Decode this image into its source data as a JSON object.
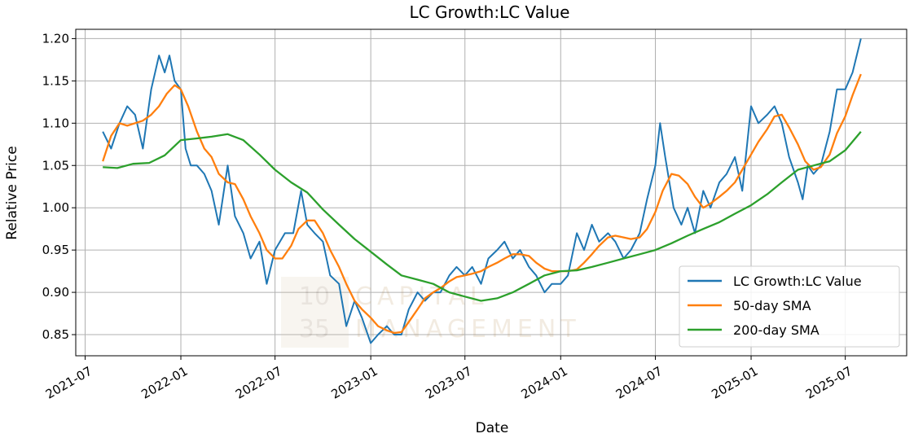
{
  "chart_data": {
    "type": "line",
    "title": "LC Growth:LC Value",
    "xlabel": "Date",
    "ylabel": "Relative Price",
    "xlim": [
      "2021-06-13",
      "2025-10-27"
    ],
    "ylim": [
      0.825,
      1.211
    ],
    "x_ticks": [
      "2021-07",
      "2022-01",
      "2022-07",
      "2023-01",
      "2023-07",
      "2024-01",
      "2024-07",
      "2025-01",
      "2025-07"
    ],
    "y_ticks": [
      0.85,
      0.9,
      0.95,
      1.0,
      1.05,
      1.1,
      1.15,
      1.2
    ],
    "y_tick_labels": [
      "0.85",
      "0.90",
      "0.95",
      "1.00",
      "1.05",
      "1.10",
      "1.15",
      "1.20"
    ],
    "grid": true,
    "legend_position": "lower-right",
    "series": [
      {
        "name": "LC Growth:LC Value",
        "color": "#1f77b4",
        "dates": [
          "2021-08-04",
          "2021-08-20",
          "2021-09-05",
          "2021-09-20",
          "2021-10-05",
          "2021-10-20",
          "2021-11-05",
          "2021-11-20",
          "2021-12-01",
          "2021-12-10",
          "2021-12-20",
          "2022-01-01",
          "2022-01-10",
          "2022-01-20",
          "2022-02-01",
          "2022-02-15",
          "2022-03-01",
          "2022-03-15",
          "2022-04-01",
          "2022-04-15",
          "2022-05-01",
          "2022-05-15",
          "2022-06-01",
          "2022-06-15",
          "2022-07-01",
          "2022-07-20",
          "2022-08-05",
          "2022-08-20",
          "2022-09-01",
          "2022-09-15",
          "2022-10-01",
          "2022-10-15",
          "2022-11-01",
          "2022-11-15",
          "2022-12-01",
          "2022-12-15",
          "2023-01-01",
          "2023-01-15",
          "2023-02-01",
          "2023-02-15",
          "2023-03-01",
          "2023-03-15",
          "2023-04-01",
          "2023-04-15",
          "2023-05-01",
          "2023-05-15",
          "2023-06-01",
          "2023-06-15",
          "2023-07-01",
          "2023-07-15",
          "2023-08-01",
          "2023-08-15",
          "2023-09-01",
          "2023-09-15",
          "2023-10-01",
          "2023-10-15",
          "2023-11-01",
          "2023-11-15",
          "2023-12-01",
          "2023-12-15",
          "2024-01-01",
          "2024-01-15",
          "2024-02-01",
          "2024-02-15",
          "2024-03-01",
          "2024-03-15",
          "2024-04-01",
          "2024-04-15",
          "2024-05-01",
          "2024-05-15",
          "2024-06-01",
          "2024-06-15",
          "2024-07-01",
          "2024-07-10",
          "2024-07-20",
          "2024-08-05",
          "2024-08-20",
          "2024-09-01",
          "2024-09-15",
          "2024-10-01",
          "2024-10-15",
          "2024-11-01",
          "2024-11-15",
          "2024-12-01",
          "2024-12-15",
          "2025-01-01",
          "2025-01-15",
          "2025-02-01",
          "2025-02-15",
          "2025-03-01",
          "2025-03-15",
          "2025-04-01",
          "2025-04-10",
          "2025-04-20",
          "2025-05-01",
          "2025-05-15",
          "2025-06-01",
          "2025-06-15",
          "2025-07-01",
          "2025-07-15",
          "2025-07-31"
        ],
        "values": [
          1.09,
          1.07,
          1.1,
          1.12,
          1.11,
          1.07,
          1.14,
          1.18,
          1.16,
          1.18,
          1.15,
          1.14,
          1.07,
          1.05,
          1.05,
          1.04,
          1.02,
          0.98,
          1.05,
          0.99,
          0.97,
          0.94,
          0.96,
          0.91,
          0.95,
          0.97,
          0.97,
          1.02,
          0.98,
          0.97,
          0.96,
          0.92,
          0.91,
          0.86,
          0.89,
          0.87,
          0.84,
          0.85,
          0.86,
          0.85,
          0.85,
          0.88,
          0.9,
          0.89,
          0.9,
          0.9,
          0.92,
          0.93,
          0.92,
          0.93,
          0.91,
          0.94,
          0.95,
          0.96,
          0.94,
          0.95,
          0.93,
          0.92,
          0.9,
          0.91,
          0.91,
          0.92,
          0.97,
          0.95,
          0.98,
          0.96,
          0.97,
          0.96,
          0.94,
          0.95,
          0.97,
          1.01,
          1.05,
          1.1,
          1.06,
          1.0,
          0.98,
          1.0,
          0.97,
          1.02,
          1.0,
          1.03,
          1.04,
          1.06,
          1.02,
          1.12,
          1.1,
          1.11,
          1.12,
          1.1,
          1.06,
          1.03,
          1.01,
          1.05,
          1.04,
          1.05,
          1.09,
          1.14,
          1.14,
          1.16,
          1.2
        ]
      },
      {
        "name": "50-day SMA",
        "color": "#ff7f0e",
        "dates": [
          "2021-08-04",
          "2021-08-20",
          "2021-09-05",
          "2021-09-20",
          "2021-10-05",
          "2021-10-20",
          "2021-11-05",
          "2021-11-20",
          "2021-12-05",
          "2021-12-20",
          "2022-01-01",
          "2022-01-15",
          "2022-02-01",
          "2022-02-15",
          "2022-03-01",
          "2022-03-15",
          "2022-04-01",
          "2022-04-15",
          "2022-05-01",
          "2022-05-15",
          "2022-06-01",
          "2022-06-15",
          "2022-07-01",
          "2022-07-15",
          "2022-08-01",
          "2022-08-15",
          "2022-09-01",
          "2022-09-15",
          "2022-10-01",
          "2022-10-15",
          "2022-11-01",
          "2022-11-15",
          "2022-12-01",
          "2022-12-15",
          "2023-01-01",
          "2023-01-15",
          "2023-02-01",
          "2023-02-15",
          "2023-03-01",
          "2023-03-15",
          "2023-04-01",
          "2023-04-15",
          "2023-05-01",
          "2023-05-15",
          "2023-06-01",
          "2023-06-15",
          "2023-07-01",
          "2023-07-15",
          "2023-08-01",
          "2023-08-15",
          "2023-09-01",
          "2023-09-15",
          "2023-10-01",
          "2023-10-15",
          "2023-11-01",
          "2023-11-15",
          "2023-12-01",
          "2023-12-15",
          "2024-01-01",
          "2024-01-15",
          "2024-02-01",
          "2024-02-15",
          "2024-03-01",
          "2024-03-15",
          "2024-04-01",
          "2024-04-15",
          "2024-05-01",
          "2024-05-15",
          "2024-06-01",
          "2024-06-15",
          "2024-07-01",
          "2024-07-15",
          "2024-08-01",
          "2024-08-15",
          "2024-09-01",
          "2024-09-15",
          "2024-10-01",
          "2024-10-15",
          "2024-11-01",
          "2024-11-15",
          "2024-12-01",
          "2024-12-15",
          "2025-01-01",
          "2025-01-15",
          "2025-02-01",
          "2025-02-15",
          "2025-03-01",
          "2025-03-15",
          "2025-04-01",
          "2025-04-15",
          "2025-05-01",
          "2025-05-15",
          "2025-06-01",
          "2025-06-15",
          "2025-07-01",
          "2025-07-15",
          "2025-07-31"
        ],
        "values": [
          1.055,
          1.085,
          1.1,
          1.097,
          1.1,
          1.103,
          1.11,
          1.12,
          1.135,
          1.145,
          1.14,
          1.12,
          1.09,
          1.07,
          1.06,
          1.04,
          1.03,
          1.028,
          1.01,
          0.99,
          0.97,
          0.95,
          0.94,
          0.94,
          0.955,
          0.975,
          0.985,
          0.985,
          0.97,
          0.95,
          0.93,
          0.91,
          0.89,
          0.88,
          0.87,
          0.86,
          0.855,
          0.852,
          0.853,
          0.865,
          0.88,
          0.893,
          0.9,
          0.905,
          0.913,
          0.918,
          0.92,
          0.922,
          0.925,
          0.93,
          0.935,
          0.94,
          0.945,
          0.945,
          0.943,
          0.935,
          0.928,
          0.925,
          0.925,
          0.925,
          0.927,
          0.935,
          0.945,
          0.955,
          0.965,
          0.967,
          0.965,
          0.963,
          0.965,
          0.975,
          0.995,
          1.02,
          1.04,
          1.038,
          1.028,
          1.013,
          1.0,
          1.005,
          1.013,
          1.02,
          1.03,
          1.045,
          1.063,
          1.078,
          1.093,
          1.108,
          1.11,
          1.095,
          1.075,
          1.055,
          1.045,
          1.048,
          1.063,
          1.088,
          1.108,
          1.133,
          1.158
        ]
      },
      {
        "name": "200-day SMA",
        "color": "#2ca02c",
        "dates": [
          "2021-08-04",
          "2021-09-01",
          "2021-10-01",
          "2021-11-01",
          "2021-12-01",
          "2022-01-01",
          "2022-02-01",
          "2022-03-01",
          "2022-04-01",
          "2022-05-01",
          "2022-06-01",
          "2022-07-01",
          "2022-08-01",
          "2022-09-01",
          "2022-10-01",
          "2022-11-01",
          "2022-12-01",
          "2023-01-01",
          "2023-02-01",
          "2023-03-01",
          "2023-04-01",
          "2023-05-01",
          "2023-06-01",
          "2023-07-01",
          "2023-08-01",
          "2023-09-01",
          "2023-10-01",
          "2023-11-01",
          "2023-12-01",
          "2024-01-01",
          "2024-02-01",
          "2024-03-01",
          "2024-04-01",
          "2024-05-01",
          "2024-06-01",
          "2024-07-01",
          "2024-08-01",
          "2024-09-01",
          "2024-10-01",
          "2024-11-01",
          "2024-12-01",
          "2025-01-01",
          "2025-02-01",
          "2025-03-01",
          "2025-04-01",
          "2025-05-01",
          "2025-06-01",
          "2025-07-01",
          "2025-07-31"
        ],
        "values": [
          1.048,
          1.047,
          1.052,
          1.053,
          1.062,
          1.08,
          1.082,
          1.084,
          1.087,
          1.08,
          1.063,
          1.045,
          1.03,
          1.018,
          0.998,
          0.98,
          0.963,
          0.948,
          0.933,
          0.92,
          0.915,
          0.91,
          0.9,
          0.895,
          0.89,
          0.893,
          0.9,
          0.91,
          0.92,
          0.925,
          0.926,
          0.93,
          0.935,
          0.94,
          0.945,
          0.95,
          0.958,
          0.967,
          0.975,
          0.983,
          0.993,
          1.003,
          1.016,
          1.03,
          1.045,
          1.05,
          1.055,
          1.068,
          1.09
        ]
      }
    ]
  },
  "watermark": {
    "logo_line1": "10",
    "logo_line2": "35",
    "name_line1": "CAPITAL",
    "name_line2": "MANAGEMENT"
  },
  "colors": {
    "grid": "#b0b0b0",
    "frame": "#000000",
    "legend_border": "#cccccc"
  }
}
